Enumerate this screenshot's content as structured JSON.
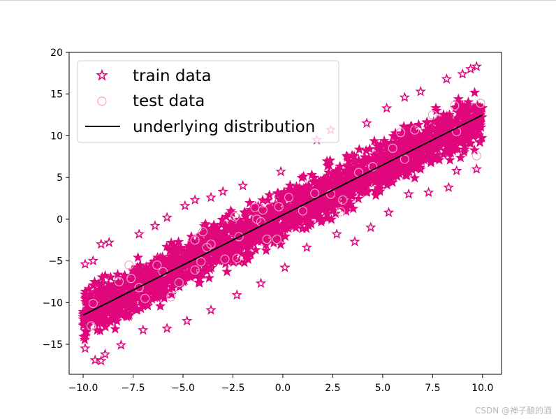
{
  "chart_data": {
    "type": "scatter",
    "title": "",
    "xlabel": "",
    "ylabel": "",
    "xlim": [
      -10.7,
      10.95
    ],
    "ylim": [
      -18.6,
      20
    ],
    "xticks": [
      -10.0,
      -7.5,
      -5.0,
      -2.5,
      0.0,
      2.5,
      5.0,
      7.5,
      10.0
    ],
    "xtick_labels": [
      "−10.0",
      "−7.5",
      "−5.0",
      "−2.5",
      "0.0",
      "2.5",
      "5.0",
      "7.5",
      "10.0"
    ],
    "yticks": [
      -15,
      -10,
      -5,
      0,
      5,
      10,
      15,
      20
    ],
    "ytick_labels": [
      "−15",
      "−10",
      "−5",
      "0",
      "5",
      "10",
      "15",
      "20"
    ],
    "grid": false,
    "legend_position": "top-left",
    "train_data": {
      "name": "train data",
      "marker": "star",
      "color": "#e0077d",
      "x_range": [
        -10,
        10
      ],
      "trend": {
        "slope": 1.2,
        "intercept": 0.5
      },
      "spread": 2.6,
      "outliers": [
        [
          -9.9,
          -5.4
        ],
        [
          -9.5,
          -5.0
        ],
        [
          -9.1,
          -3.0
        ],
        [
          -8.7,
          -2.8
        ],
        [
          -7.2,
          -1.8
        ],
        [
          -6.4,
          -0.8
        ],
        [
          -5.8,
          0.2
        ],
        [
          -4.9,
          1.6
        ],
        [
          -4.4,
          2.3
        ],
        [
          -3.6,
          2.6
        ],
        [
          -3.0,
          3.3
        ],
        [
          -2.0,
          4.0
        ],
        [
          -0.1,
          5.7
        ],
        [
          1.7,
          9.5
        ],
        [
          2.4,
          10.7
        ],
        [
          4.2,
          11.5
        ],
        [
          5.2,
          13.3
        ],
        [
          6.1,
          14.6
        ],
        [
          6.9,
          15.3
        ],
        [
          8.2,
          16.8
        ],
        [
          9.0,
          17.4
        ],
        [
          9.4,
          18.0
        ],
        [
          9.7,
          18.3
        ],
        [
          -9.9,
          -15.5
        ],
        [
          -9.4,
          -16.9
        ],
        [
          -9.1,
          -17.0
        ],
        [
          -8.9,
          -16.2
        ],
        [
          -8.1,
          -15.1
        ],
        [
          -7.0,
          -13.3
        ],
        [
          -5.8,
          -13.1
        ],
        [
          -4.8,
          -12.2
        ],
        [
          -3.6,
          -10.9
        ],
        [
          -2.3,
          -9.1
        ],
        [
          -1.1,
          -7.7
        ],
        [
          0.1,
          -5.8
        ],
        [
          1.2,
          -3.4
        ],
        [
          2.7,
          -1.8
        ],
        [
          3.6,
          -2.7
        ],
        [
          4.4,
          -1.0
        ],
        [
          5.3,
          0.8
        ],
        [
          6.3,
          3.0
        ],
        [
          7.3,
          3.2
        ],
        [
          8.3,
          3.8
        ],
        [
          8.7,
          5.8
        ],
        [
          9.7,
          6.0
        ]
      ]
    },
    "test_data": {
      "name": "test data",
      "marker": "circle",
      "color": "#f2a2c4",
      "x": [
        -9.6,
        -9.5,
        -8.2,
        -7.7,
        -7.6,
        -7.2,
        -6.9,
        -6.3,
        -6.0,
        -5.6,
        -5.2,
        -4.4,
        -4.4,
        -4.1,
        -4.0,
        -3.8,
        -3.6,
        -2.9,
        -2.4,
        -2.3,
        -2.2,
        -1.4,
        -1.3,
        -1.1,
        -1.0,
        -0.8,
        -0.3,
        -0.2,
        0.3,
        1.0,
        1.6,
        2.4,
        2.9,
        3.0,
        3.8,
        4.5,
        5.5,
        5.9,
        6.1,
        6.6,
        7.5,
        8.6,
        8.7,
        9.7,
        9.9
      ],
      "y": [
        -12.8,
        -10.1,
        -7.5,
        -5.5,
        -7.1,
        -8.2,
        -9.5,
        -5.5,
        -6.3,
        -9.3,
        -7.6,
        -2.5,
        -6.1,
        -5.1,
        -1.5,
        -3.4,
        -3.0,
        -4.8,
        0.3,
        -4.7,
        -2.1,
        1.4,
        0.0,
        -0.3,
        1.1,
        -2.4,
        -2.4,
        1.5,
        2.6,
        1.0,
        3.1,
        3.0,
        0.9,
        2.3,
        5.6,
        6.3,
        8.5,
        10.4,
        7.2,
        10.7,
        12.5,
        13.6,
        10.5,
        7.6,
        13.9
      ]
    },
    "underlying_distribution": {
      "name": "underlying distribution",
      "color": "#000000",
      "x": [
        -10,
        10
      ],
      "y": [
        -11.5,
        12.5
      ]
    }
  },
  "footer": {
    "watermark": "CSDN @禅子酿的酒"
  }
}
